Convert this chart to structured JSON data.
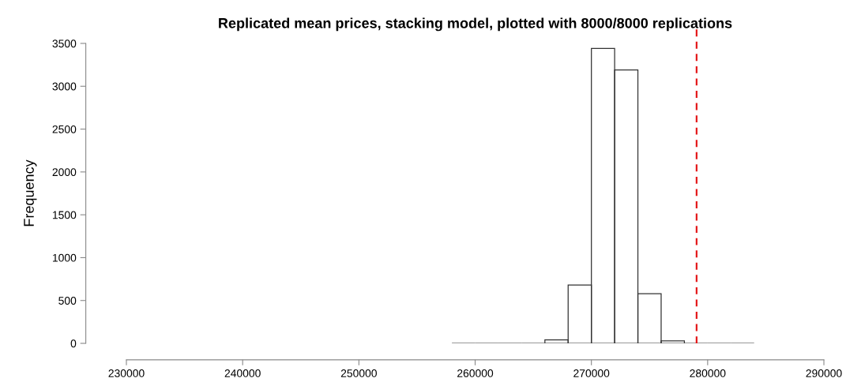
{
  "chart_data": {
    "type": "histogram",
    "title": "Replicated mean prices, stacking model, plotted with 8000/8000 replications",
    "ylabel": "Frequency",
    "bins": [
      258000,
      260000,
      262000,
      264000,
      266000,
      268000,
      270000,
      272000,
      274000,
      276000,
      278000,
      280000,
      282000,
      284000
    ],
    "values": [
      0,
      0,
      0,
      0,
      40,
      680,
      3440,
      3190,
      580,
      30,
      0,
      0,
      0
    ],
    "color": "#333333",
    "xlim": [
      230000,
      290000
    ],
    "xticks": [
      230000,
      240000,
      250000,
      260000,
      270000,
      280000,
      290000
    ],
    "ylim": [
      0,
      3500
    ],
    "yticks": [
      0,
      500,
      1000,
      1500,
      2000,
      2500,
      3000,
      3500
    ],
    "ref_lines": [
      {
        "axis": "x",
        "value": 279050,
        "color": "#e41a1c",
        "line_style": "dashed"
      }
    ],
    "grid": false
  }
}
